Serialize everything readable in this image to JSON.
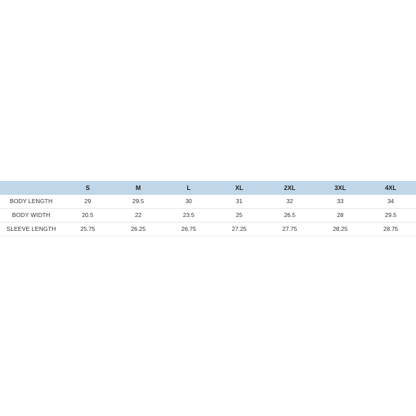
{
  "size_chart": {
    "header": {
      "corner_label": "",
      "sizes": [
        "S",
        "M",
        "L",
        "XL",
        "2XL",
        "3XL",
        "4XL"
      ]
    },
    "rows": [
      {
        "label": "BODY LENGTH",
        "values": [
          "29",
          "29.5",
          "30",
          "31",
          "32",
          "33",
          "34"
        ]
      },
      {
        "label": "BODY WIDTH",
        "values": [
          "20.5",
          "22",
          "23.5",
          "25",
          "26.5",
          "28",
          "29.5"
        ]
      },
      {
        "label": "SLEEVE LENGTH",
        "values": [
          "25.75",
          "26.25",
          "26.75",
          "27.25",
          "27.75",
          "28.25",
          "28.75"
        ]
      }
    ],
    "colors": {
      "header_background": "#bfd7e8",
      "row_divider": "#e6e6e6",
      "text": "#333333"
    }
  }
}
